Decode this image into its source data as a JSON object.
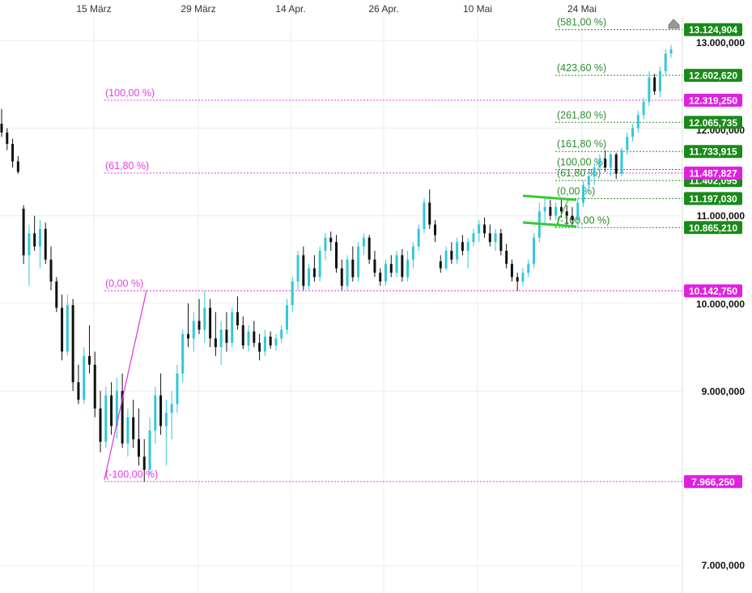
{
  "chart_data": {
    "type": "candlestick",
    "x_tick_labels": [
      "15 März",
      "29 März",
      "14 Apr.",
      "26 Apr.",
      "10 Mai",
      "24 Mai"
    ],
    "y_tick_labels": [
      {
        "value": 13000000,
        "label": "13.000,000"
      },
      {
        "value": 12000000,
        "label": "12.000,000"
      },
      {
        "value": 11000000,
        "label": "11.000,000"
      },
      {
        "value": 10000000,
        "label": "10.000,000"
      },
      {
        "value": 9000000,
        "label": "9.000,000"
      },
      {
        "value": 7000000,
        "label": "7.000,000"
      }
    ],
    "ylim": [
      6900000,
      13300000
    ],
    "colors": {
      "up": "#33c7d9",
      "down": "#111111",
      "fib_primary": "#e63be6",
      "fib_secondary": "#2e8b2e",
      "tag_green": "#1a8a1a",
      "tag_magenta": "#e020e0",
      "channel": "#33cc33"
    },
    "fib_primary": {
      "levels": [
        {
          "label": "(100,00 %)",
          "value": 12319250,
          "price_label": "12.319,250"
        },
        {
          "label": "(61,80 %)",
          "value": 11487827,
          "price_label": "11.487,827"
        },
        {
          "label": "(0,00 %)",
          "value": 10142750,
          "price_label": "10.142,750"
        },
        {
          "label": "(-100,00 %)",
          "value": 7966250,
          "price_label": "7.966,250"
        }
      ]
    },
    "fib_secondary": {
      "levels": [
        {
          "label": "(581,00 %)",
          "value": 13124904,
          "price_label": "13.124,904"
        },
        {
          "label": "(423,60 %)",
          "value": 12602620,
          "price_label": "12.602,620"
        },
        {
          "label": "(261,80 %)",
          "value": 12065735,
          "price_label": "12.065,735"
        },
        {
          "label": "(161,80 %)",
          "value": 11733915,
          "price_label": "11.733,915"
        },
        {
          "label": "(100,00 %)",
          "value": 11528000,
          "price_label": ""
        },
        {
          "label": "(61,80 %)",
          "value": 11402095,
          "price_label": "11.402,095"
        },
        {
          "label": "(0,00 %)",
          "value": 11197030,
          "price_label": "11.197,030"
        },
        {
          "label": "(-100,00 %)",
          "value": 10865210,
          "price_label": "10.865,210"
        }
      ]
    },
    "series": [
      {
        "o": 12050000,
        "h": 12220000,
        "l": 11900000,
        "c": 11950000
      },
      {
        "o": 11950000,
        "h": 12000000,
        "l": 11750000,
        "c": 11820000
      },
      {
        "o": 11820000,
        "h": 11880000,
        "l": 11550000,
        "c": 11620000
      },
      {
        "o": 11620000,
        "h": 11680000,
        "l": 11480000,
        "c": 11500000
      },
      {
        "o": 11080000,
        "h": 11120000,
        "l": 10450000,
        "c": 10550000
      },
      {
        "o": 10550000,
        "h": 10900000,
        "l": 10200000,
        "c": 10800000
      },
      {
        "o": 10800000,
        "h": 11000000,
        "l": 10600000,
        "c": 10650000
      },
      {
        "o": 10650000,
        "h": 10950000,
        "l": 10400000,
        "c": 10850000
      },
      {
        "o": 10850000,
        "h": 10920000,
        "l": 10450000,
        "c": 10500000
      },
      {
        "o": 10500000,
        "h": 10650000,
        "l": 10150000,
        "c": 10250000
      },
      {
        "o": 10250000,
        "h": 10300000,
        "l": 9900000,
        "c": 9950000
      },
      {
        "o": 9950000,
        "h": 10100000,
        "l": 9350000,
        "c": 9450000
      },
      {
        "o": 9450000,
        "h": 10100000,
        "l": 9400000,
        "c": 9980000
      },
      {
        "o": 9980000,
        "h": 10050000,
        "l": 9000000,
        "c": 9100000
      },
      {
        "o": 9100000,
        "h": 9300000,
        "l": 8850000,
        "c": 8900000
      },
      {
        "o": 8900000,
        "h": 9500000,
        "l": 8850000,
        "c": 9400000
      },
      {
        "o": 9400000,
        "h": 9750000,
        "l": 9200000,
        "c": 9300000
      },
      {
        "o": 9300000,
        "h": 9450000,
        "l": 8700000,
        "c": 8800000
      },
      {
        "o": 8800000,
        "h": 9000000,
        "l": 8300000,
        "c": 8420000
      },
      {
        "o": 8420000,
        "h": 9050000,
        "l": 8350000,
        "c": 8950000
      },
      {
        "o": 8950000,
        "h": 9100000,
        "l": 8500000,
        "c": 8600000
      },
      {
        "o": 8600000,
        "h": 9150000,
        "l": 8450000,
        "c": 9000000
      },
      {
        "o": 9000000,
        "h": 9200000,
        "l": 8350000,
        "c": 8400000
      },
      {
        "o": 8400000,
        "h": 8800000,
        "l": 8250000,
        "c": 8700000
      },
      {
        "o": 8700000,
        "h": 8900000,
        "l": 8350000,
        "c": 8450000
      },
      {
        "o": 8450000,
        "h": 8800000,
        "l": 8150000,
        "c": 8250000
      },
      {
        "o": 8250000,
        "h": 8450000,
        "l": 7966250,
        "c": 8100000
      },
      {
        "o": 8100000,
        "h": 8700000,
        "l": 8050000,
        "c": 8550000
      },
      {
        "o": 8550000,
        "h": 9050000,
        "l": 8400000,
        "c": 8950000
      },
      {
        "o": 8950000,
        "h": 9200000,
        "l": 8500000,
        "c": 8600000
      },
      {
        "o": 8600000,
        "h": 8900000,
        "l": 8150000,
        "c": 8750000
      },
      {
        "o": 8750000,
        "h": 9000000,
        "l": 8450000,
        "c": 8850000
      },
      {
        "o": 8850000,
        "h": 9300000,
        "l": 8750000,
        "c": 9200000
      },
      {
        "o": 9200000,
        "h": 9700000,
        "l": 9100000,
        "c": 9650000
      },
      {
        "o": 9650000,
        "h": 10000000,
        "l": 9500000,
        "c": 9600000
      },
      {
        "o": 9600000,
        "h": 9900000,
        "l": 9450000,
        "c": 9800000
      },
      {
        "o": 9800000,
        "h": 10050000,
        "l": 9650000,
        "c": 9700000
      },
      {
        "o": 9700000,
        "h": 10142750,
        "l": 9550000,
        "c": 9950000
      },
      {
        "o": 9950000,
        "h": 10050000,
        "l": 9500000,
        "c": 9600000
      },
      {
        "o": 9600000,
        "h": 9900000,
        "l": 9400000,
        "c": 9500000
      },
      {
        "o": 9500000,
        "h": 9800000,
        "l": 9300000,
        "c": 9700000
      },
      {
        "o": 9700000,
        "h": 9900000,
        "l": 9450000,
        "c": 9550000
      },
      {
        "o": 9550000,
        "h": 9950000,
        "l": 9500000,
        "c": 9900000
      },
      {
        "o": 9900000,
        "h": 10080000,
        "l": 9700000,
        "c": 9750000
      },
      {
        "o": 9750000,
        "h": 9850000,
        "l": 9480000,
        "c": 9520000
      },
      {
        "o": 9520000,
        "h": 9750000,
        "l": 9450000,
        "c": 9680000
      },
      {
        "o": 9680000,
        "h": 9800000,
        "l": 9500000,
        "c": 9550000
      },
      {
        "o": 9550000,
        "h": 9650000,
        "l": 9350000,
        "c": 9450000
      },
      {
        "o": 9450000,
        "h": 9700000,
        "l": 9400000,
        "c": 9620000
      },
      {
        "o": 9620000,
        "h": 9680000,
        "l": 9480000,
        "c": 9520000
      },
      {
        "o": 9520000,
        "h": 9650000,
        "l": 9460000,
        "c": 9600000
      },
      {
        "o": 9600000,
        "h": 9750000,
        "l": 9550000,
        "c": 9700000
      },
      {
        "o": 9700000,
        "h": 10050000,
        "l": 9650000,
        "c": 9980000
      },
      {
        "o": 9980000,
        "h": 10300000,
        "l": 9900000,
        "c": 10250000
      },
      {
        "o": 10250000,
        "h": 10600000,
        "l": 10150000,
        "c": 10550000
      },
      {
        "o": 10550000,
        "h": 10650000,
        "l": 10150000,
        "c": 10200000
      },
      {
        "o": 10200000,
        "h": 10450000,
        "l": 10150000,
        "c": 10400000
      },
      {
        "o": 10400000,
        "h": 10550000,
        "l": 10250000,
        "c": 10300000
      },
      {
        "o": 10300000,
        "h": 10650000,
        "l": 10250000,
        "c": 10600000
      },
      {
        "o": 10600000,
        "h": 10800000,
        "l": 10500000,
        "c": 10750000
      },
      {
        "o": 10750000,
        "h": 10820000,
        "l": 10600000,
        "c": 10700000
      },
      {
        "o": 10700000,
        "h": 10780000,
        "l": 10350000,
        "c": 10400000
      },
      {
        "o": 10400000,
        "h": 10500000,
        "l": 10150000,
        "c": 10200000
      },
      {
        "o": 10200000,
        "h": 10550000,
        "l": 10150000,
        "c": 10500000
      },
      {
        "o": 10500000,
        "h": 10650000,
        "l": 10250000,
        "c": 10300000
      },
      {
        "o": 10300000,
        "h": 10700000,
        "l": 10250000,
        "c": 10650000
      },
      {
        "o": 10650000,
        "h": 10800000,
        "l": 10550000,
        "c": 10750000
      },
      {
        "o": 10750000,
        "h": 10780000,
        "l": 10450000,
        "c": 10500000
      },
      {
        "o": 10500000,
        "h": 10600000,
        "l": 10300000,
        "c": 10350000
      },
      {
        "o": 10350000,
        "h": 10400000,
        "l": 10200000,
        "c": 10250000
      },
      {
        "o": 10250000,
        "h": 10500000,
        "l": 10200000,
        "c": 10450000
      },
      {
        "o": 10450000,
        "h": 10550000,
        "l": 10300000,
        "c": 10350000
      },
      {
        "o": 10350000,
        "h": 10600000,
        "l": 10300000,
        "c": 10550000
      },
      {
        "o": 10550000,
        "h": 10620000,
        "l": 10250000,
        "c": 10300000
      },
      {
        "o": 10300000,
        "h": 10600000,
        "l": 10250000,
        "c": 10500000
      },
      {
        "o": 10500000,
        "h": 10700000,
        "l": 10400000,
        "c": 10650000
      },
      {
        "o": 10650000,
        "h": 10900000,
        "l": 10600000,
        "c": 10850000
      },
      {
        "o": 10850000,
        "h": 11200000,
        "l": 10800000,
        "c": 11150000
      },
      {
        "o": 11150000,
        "h": 11300000,
        "l": 10850000,
        "c": 10900000
      },
      {
        "o": 10900000,
        "h": 10950000,
        "l": 10700000,
        "c": 10780000
      },
      {
        "o": 10480000,
        "h": 10550000,
        "l": 10350000,
        "c": 10400000
      },
      {
        "o": 10400000,
        "h": 10650000,
        "l": 10380000,
        "c": 10600000
      },
      {
        "o": 10600000,
        "h": 10700000,
        "l": 10450000,
        "c": 10500000
      },
      {
        "o": 10500000,
        "h": 10750000,
        "l": 10450000,
        "c": 10700000
      },
      {
        "o": 10700000,
        "h": 10780000,
        "l": 10550000,
        "c": 10600000
      },
      {
        "o": 10600000,
        "h": 10750000,
        "l": 10400000,
        "c": 10700000
      },
      {
        "o": 10700000,
        "h": 10850000,
        "l": 10650000,
        "c": 10800000
      },
      {
        "o": 10800000,
        "h": 10950000,
        "l": 10700000,
        "c": 10900000
      },
      {
        "o": 10900000,
        "h": 10980000,
        "l": 10750000,
        "c": 10800000
      },
      {
        "o": 10800000,
        "h": 10900000,
        "l": 10650000,
        "c": 10700000
      },
      {
        "o": 10700000,
        "h": 10850000,
        "l": 10600000,
        "c": 10800000
      },
      {
        "o": 10800000,
        "h": 10850000,
        "l": 10550000,
        "c": 10600000
      },
      {
        "o": 10600000,
        "h": 10680000,
        "l": 10400000,
        "c": 10450000
      },
      {
        "o": 10450000,
        "h": 10500000,
        "l": 10250000,
        "c": 10300000
      },
      {
        "o": 10300000,
        "h": 10350000,
        "l": 10142750,
        "c": 10250000
      },
      {
        "o": 10250000,
        "h": 10400000,
        "l": 10200000,
        "c": 10350000
      },
      {
        "o": 10350000,
        "h": 10500000,
        "l": 10300000,
        "c": 10450000
      },
      {
        "o": 10450000,
        "h": 10800000,
        "l": 10400000,
        "c": 10750000
      },
      {
        "o": 10750000,
        "h": 11150000,
        "l": 10700000,
        "c": 11050000
      },
      {
        "o": 11050000,
        "h": 11200000,
        "l": 10900000,
        "c": 11100000
      },
      {
        "o": 11100000,
        "h": 11180000,
        "l": 10950000,
        "c": 11000000
      },
      {
        "o": 11000000,
        "h": 11150000,
        "l": 10950000,
        "c": 11100000
      },
      {
        "o": 11100000,
        "h": 11190000,
        "l": 10980000,
        "c": 11050000
      },
      {
        "o": 11050000,
        "h": 11120000,
        "l": 10900000,
        "c": 11000000
      },
      {
        "o": 11000000,
        "h": 11100000,
        "l": 10880000,
        "c": 10950000
      },
      {
        "o": 10950000,
        "h": 11200000,
        "l": 10865210,
        "c": 11150000
      },
      {
        "o": 11150000,
        "h": 11400000,
        "l": 11100000,
        "c": 11350000
      },
      {
        "o": 11350000,
        "h": 11500000,
        "l": 11250000,
        "c": 11450000
      },
      {
        "o": 11450000,
        "h": 11600000,
        "l": 11350000,
        "c": 11550000
      },
      {
        "o": 11550000,
        "h": 11700000,
        "l": 11450000,
        "c": 11650000
      },
      {
        "o": 11650000,
        "h": 11750000,
        "l": 11500000,
        "c": 11550000
      },
      {
        "o": 11550000,
        "h": 11720000,
        "l": 11450000,
        "c": 11700000
      },
      {
        "o": 11700000,
        "h": 11720000,
        "l": 11420000,
        "c": 11480000
      },
      {
        "o": 11480000,
        "h": 11780000,
        "l": 11450000,
        "c": 11750000
      },
      {
        "o": 11750000,
        "h": 11950000,
        "l": 11700000,
        "c": 11900000
      },
      {
        "o": 11900000,
        "h": 12050000,
        "l": 11850000,
        "c": 12000000
      },
      {
        "o": 12000000,
        "h": 12200000,
        "l": 11950000,
        "c": 12150000
      },
      {
        "o": 12150000,
        "h": 12350000,
        "l": 12100000,
        "c": 12300000
      },
      {
        "o": 12300000,
        "h": 12650000,
        "l": 12250000,
        "c": 12580000
      },
      {
        "o": 12580000,
        "h": 12620000,
        "l": 12380000,
        "c": 12420000
      },
      {
        "o": 12420000,
        "h": 12700000,
        "l": 12350000,
        "c": 12650000
      },
      {
        "o": 12650000,
        "h": 12900000,
        "l": 12600000,
        "c": 12850000
      },
      {
        "o": 12850000,
        "h": 12950000,
        "l": 12800000,
        "c": 12900000
      }
    ]
  }
}
